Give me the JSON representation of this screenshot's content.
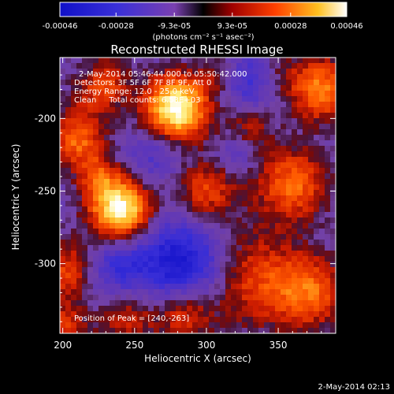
{
  "chart_data": {
    "type": "heatmap",
    "title": "Reconstructed RHESSI Image",
    "xlabel": "Heliocentric X (arcsec)",
    "ylabel": "Heliocentric Y (arcsec)",
    "xlim": [
      198,
      390
    ],
    "ylim": [
      -348,
      -158
    ],
    "x_ticks": [
      200,
      250,
      300,
      350
    ],
    "y_ticks": [
      -200,
      -250,
      -300
    ],
    "colorbar": {
      "range": [
        -0.00046,
        0.00046
      ],
      "tick_values": [
        -0.00046,
        -0.00028,
        -9.3e-05,
        9.3e-05,
        0.00028,
        0.00046
      ],
      "tick_labels": [
        "-0.00046",
        "-0.00028",
        "-9.3e-05",
        "9.3e-05",
        "0.00028",
        "0.00046"
      ],
      "units": "(photons cm⁻² s⁻¹ asec⁻²)"
    },
    "annotations": [
      "2-May-2014 05:46:44.000 to 05:50:42.000",
      "Detectors: 3F 5F 6F 7F 8F 9F, Att 0",
      "Energy Range: 12.0 - 25.0 keV",
      "Clean     Total counts: 6.53E+03"
    ],
    "peak_label": "Position of Peak = [240,-263]",
    "sources": [
      {
        "x": 279,
        "y": -193,
        "r": 16,
        "amp": 1.0
      },
      {
        "x": 240,
        "y": -263,
        "r": 15,
        "amp": 1.0
      },
      {
        "x": 225,
        "y": -175,
        "r": 14,
        "amp": 0.55
      },
      {
        "x": 380,
        "y": -180,
        "r": 16,
        "amp": 0.6
      },
      {
        "x": 210,
        "y": -215,
        "r": 14,
        "amp": 0.55
      },
      {
        "x": 360,
        "y": -245,
        "r": 18,
        "amp": 0.55
      },
      {
        "x": 205,
        "y": -305,
        "r": 16,
        "amp": 0.5
      },
      {
        "x": 330,
        "y": -310,
        "r": 25,
        "amp": 0.45
      },
      {
        "x": 300,
        "y": -250,
        "r": 16,
        "amp": 0.45
      },
      {
        "x": 285,
        "y": -335,
        "r": 14,
        "amp": 0.45
      },
      {
        "x": 372,
        "y": -320,
        "r": 18,
        "amp": 0.5
      },
      {
        "x": 245,
        "y": -335,
        "r": 16,
        "amp": 0.4
      },
      {
        "x": 225,
        "y": -240,
        "r": 10,
        "amp": 0.35
      },
      {
        "x": 330,
        "y": -205,
        "r": 12,
        "amp": 0.3
      },
      {
        "x": 310,
        "y": -170,
        "r": 10,
        "amp": 0.25
      },
      {
        "x": 200,
        "y": -345,
        "r": 12,
        "amp": 0.4
      },
      {
        "x": 350,
        "y": -170,
        "r": 12,
        "amp": 0.2
      }
    ],
    "negatives": [
      {
        "x": 218,
        "y": -170,
        "r": 10,
        "amp": 0.25
      },
      {
        "x": 330,
        "y": -175,
        "r": 14,
        "amp": 0.45
      },
      {
        "x": 235,
        "y": -305,
        "r": 18,
        "amp": 0.5
      },
      {
        "x": 285,
        "y": -300,
        "r": 22,
        "amp": 0.75
      },
      {
        "x": 265,
        "y": -225,
        "r": 14,
        "amp": 0.3
      },
      {
        "x": 320,
        "y": -225,
        "r": 10,
        "amp": 0.25
      }
    ]
  },
  "footer": {
    "timestamp": "2-May-2014 02:13"
  }
}
